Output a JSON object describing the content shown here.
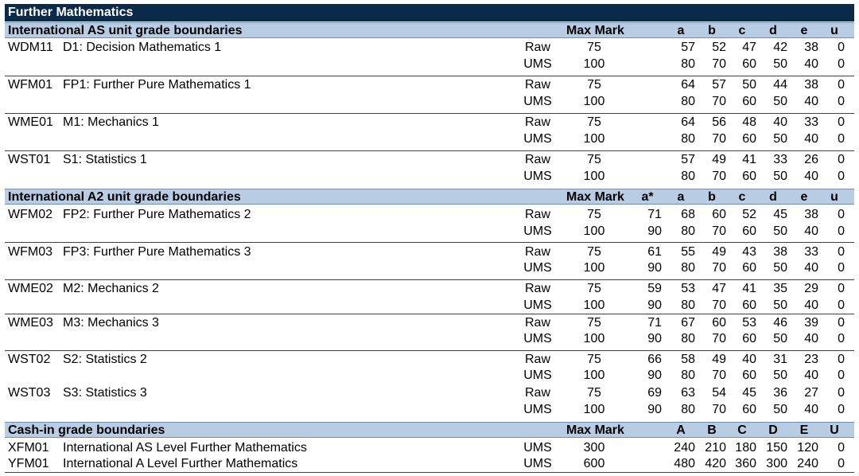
{
  "title": "Further Mathematics",
  "as": {
    "header": {
      "title": "International AS unit grade boundaries",
      "max": "Max Mark",
      "a": "a",
      "b": "b",
      "c": "c",
      "d": "d",
      "e": "e",
      "u": "u"
    },
    "units": [
      {
        "code": "WDM11",
        "name": "D1: Decision Mathematics 1",
        "raw": {
          "type": "Raw",
          "max": "75",
          "a": "57",
          "b": "52",
          "c": "47",
          "d": "42",
          "e": "38",
          "u": "0"
        },
        "ums": {
          "type": "UMS",
          "max": "100",
          "a": "80",
          "b": "70",
          "c": "60",
          "d": "50",
          "e": "40",
          "u": "0"
        }
      },
      {
        "code": "WFM01",
        "name": "FP1: Further Pure Mathematics 1",
        "raw": {
          "type": "Raw",
          "max": "75",
          "a": "64",
          "b": "57",
          "c": "50",
          "d": "44",
          "e": "38",
          "u": "0"
        },
        "ums": {
          "type": "UMS",
          "max": "100",
          "a": "80",
          "b": "70",
          "c": "60",
          "d": "50",
          "e": "40",
          "u": "0"
        }
      },
      {
        "code": "WME01",
        "name": "M1: Mechanics 1",
        "raw": {
          "type": "Raw",
          "max": "75",
          "a": "64",
          "b": "56",
          "c": "48",
          "d": "40",
          "e": "33",
          "u": "0"
        },
        "ums": {
          "type": "UMS",
          "max": "100",
          "a": "80",
          "b": "70",
          "c": "60",
          "d": "50",
          "e": "40",
          "u": "0"
        }
      },
      {
        "code": "WST01",
        "name": "S1: Statistics 1",
        "raw": {
          "type": "Raw",
          "max": "75",
          "a": "57",
          "b": "49",
          "c": "41",
          "d": "33",
          "e": "26",
          "u": "0"
        },
        "ums": {
          "type": "UMS",
          "max": "100",
          "a": "80",
          "b": "70",
          "c": "60",
          "d": "50",
          "e": "40",
          "u": "0"
        }
      }
    ]
  },
  "a2": {
    "header": {
      "title": "International A2 unit grade boundaries",
      "max": "Max Mark",
      "astar": "a*",
      "a": "a",
      "b": "b",
      "c": "c",
      "d": "d",
      "e": "e",
      "u": "u"
    },
    "units": [
      {
        "code": "WFM02",
        "name": "FP2: Further Pure Mathematics 2",
        "raw": {
          "type": "Raw",
          "max": "75",
          "astar": "71",
          "a": "68",
          "b": "60",
          "c": "52",
          "d": "45",
          "e": "38",
          "u": "0"
        },
        "ums": {
          "type": "UMS",
          "max": "100",
          "astar": "90",
          "a": "80",
          "b": "70",
          "c": "60",
          "d": "50",
          "e": "40",
          "u": "0"
        }
      },
      {
        "code": "WFM03",
        "name": "FP3: Further Pure Mathematics 3",
        "raw": {
          "type": "Raw",
          "max": "75",
          "astar": "61",
          "a": "55",
          "b": "49",
          "c": "43",
          "d": "38",
          "e": "33",
          "u": "0"
        },
        "ums": {
          "type": "UMS",
          "max": "100",
          "astar": "90",
          "a": "80",
          "b": "70",
          "c": "60",
          "d": "50",
          "e": "40",
          "u": "0"
        }
      },
      {
        "code": "WME02",
        "name": "M2: Mechanics 2",
        "raw": {
          "type": "Raw",
          "max": "75",
          "astar": "59",
          "a": "53",
          "b": "47",
          "c": "41",
          "d": "35",
          "e": "29",
          "u": "0"
        },
        "ums": {
          "type": "UMS",
          "max": "100",
          "astar": "90",
          "a": "80",
          "b": "70",
          "c": "60",
          "d": "50",
          "e": "40",
          "u": "0"
        }
      },
      {
        "code": "WME03",
        "name": "M3: Mechanics 3",
        "raw": {
          "type": "Raw",
          "max": "75",
          "astar": "71",
          "a": "67",
          "b": "60",
          "c": "53",
          "d": "46",
          "e": "39",
          "u": "0"
        },
        "ums": {
          "type": "UMS",
          "max": "100",
          "astar": "90",
          "a": "80",
          "b": "70",
          "c": "60",
          "d": "50",
          "e": "40",
          "u": "0"
        }
      },
      {
        "code": "WST02",
        "name": "S2: Statistics 2",
        "raw": {
          "type": "Raw",
          "max": "75",
          "astar": "66",
          "a": "58",
          "b": "49",
          "c": "40",
          "d": "31",
          "e": "23",
          "u": "0"
        },
        "ums": {
          "type": "UMS",
          "max": "100",
          "astar": "90",
          "a": "80",
          "b": "70",
          "c": "60",
          "d": "50",
          "e": "40",
          "u": "0"
        }
      },
      {
        "code": "WST03",
        "name": "S3: Statistics 3",
        "raw": {
          "type": "Raw",
          "max": "75",
          "astar": "69",
          "a": "63",
          "b": "54",
          "c": "45",
          "d": "36",
          "e": "27",
          "u": "0"
        },
        "ums": {
          "type": "UMS",
          "max": "100",
          "astar": "90",
          "a": "80",
          "b": "70",
          "c": "60",
          "d": "50",
          "e": "40",
          "u": "0"
        }
      }
    ]
  },
  "cashin": {
    "header": {
      "title": "Cash-in grade boundaries",
      "max": "Max Mark",
      "a": "A",
      "b": "B",
      "c": "C",
      "d": "D",
      "e": "E",
      "u": "U"
    },
    "rows": [
      {
        "code": "XFM01",
        "name": "International AS Level Further Mathematics",
        "type": "UMS",
        "max": "300",
        "a": "240",
        "b": "210",
        "c": "180",
        "d": "150",
        "e": "120",
        "u": "0"
      },
      {
        "code": "YFM01",
        "name": "International A Level Further Mathematics",
        "type": "UMS",
        "max": "600",
        "a": "480",
        "b": "420",
        "c": "360",
        "d": "300",
        "e": "240",
        "u": "0"
      }
    ]
  },
  "colors": {
    "title_bg": "#0b2a4a",
    "header_bg": "#b8cce4"
  }
}
